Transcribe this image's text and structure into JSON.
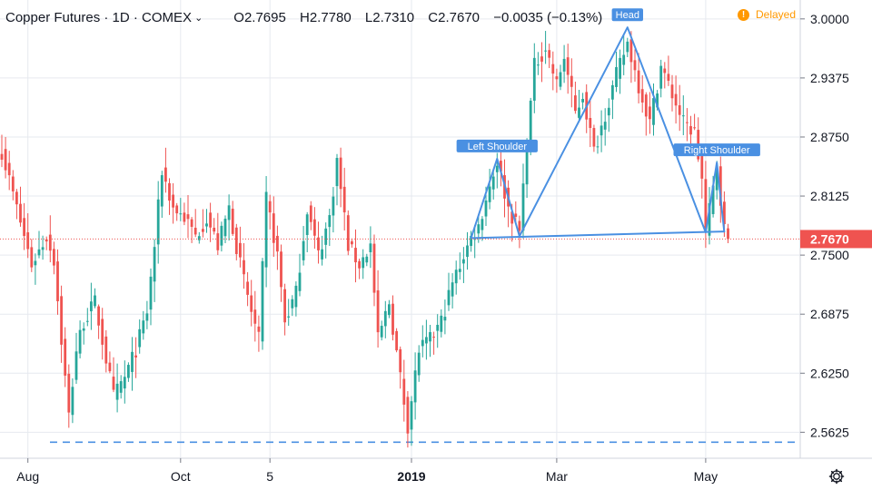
{
  "legend": {
    "symbol": "Copper Futures · 1D · COMEX",
    "open": "O2.7695",
    "high": "H2.7780",
    "low": "L2.7310",
    "close": "C2.7670",
    "change": "−0.0035 (−0.13%)"
  },
  "status": {
    "label": "Delayed",
    "icon": "!"
  },
  "colors": {
    "up": "#26a69a",
    "down": "#ef5350",
    "pattern": "#4a90e2",
    "last_price": "#ef5350",
    "grid": "#e6e9ef",
    "axis_text": "#131722"
  },
  "chart_data": {
    "type": "candlestick",
    "ylim": [
      2.535,
      3.02
    ],
    "y_ticks": [
      "2.5625",
      "2.6250",
      "2.6875",
      "2.7500",
      "2.8125",
      "2.8750",
      "2.9375",
      "3.0000"
    ],
    "x_ticks": [
      {
        "label": "Aug",
        "index": 7
      },
      {
        "label": "Oct",
        "index": 48
      },
      {
        "label": "5",
        "index": 72
      },
      {
        "label": "2019",
        "index": 110,
        "bold": true
      },
      {
        "label": "Mar",
        "index": 149
      },
      {
        "label": "May",
        "index": 189
      }
    ],
    "last_price": {
      "value": 2.767,
      "label": "2.7670"
    },
    "support_level": 2.552,
    "annotations": [
      {
        "label": "Left Shoulder",
        "index": 133,
        "price": 2.852
      },
      {
        "label": "Head",
        "index": 168,
        "price": 2.991
      },
      {
        "label": "Right Shoulder",
        "index": 192,
        "price": 2.848
      }
    ],
    "pattern_path": [
      {
        "index": 126,
        "price": 2.768
      },
      {
        "index": 133,
        "price": 2.852
      },
      {
        "index": 139,
        "price": 2.77
      },
      {
        "index": 168,
        "price": 2.991
      },
      {
        "index": 189,
        "price": 2.774
      },
      {
        "index": 192,
        "price": 2.848
      },
      {
        "index": 194,
        "price": 2.774
      }
    ],
    "neckline": [
      {
        "index": 126,
        "price": 2.768
      },
      {
        "index": 194,
        "price": 2.775
      }
    ],
    "close_anchors": [
      [
        0,
        2.86
      ],
      [
        4,
        2.8
      ],
      [
        8,
        2.74
      ],
      [
        12,
        2.77
      ],
      [
        14,
        2.745
      ],
      [
        16,
        2.66
      ],
      [
        18,
        2.58
      ],
      [
        20,
        2.65
      ],
      [
        22,
        2.68
      ],
      [
        25,
        2.7
      ],
      [
        28,
        2.64
      ],
      [
        30,
        2.6
      ],
      [
        33,
        2.62
      ],
      [
        36,
        2.65
      ],
      [
        39,
        2.69
      ],
      [
        41,
        2.76
      ],
      [
        43,
        2.84
      ],
      [
        46,
        2.8
      ],
      [
        49,
        2.79
      ],
      [
        52,
        2.77
      ],
      [
        55,
        2.79
      ],
      [
        58,
        2.76
      ],
      [
        61,
        2.8
      ],
      [
        64,
        2.74
      ],
      [
        67,
        2.69
      ],
      [
        69,
        2.66
      ],
      [
        71,
        2.81
      ],
      [
        74,
        2.75
      ],
      [
        76,
        2.68
      ],
      [
        79,
        2.71
      ],
      [
        82,
        2.8
      ],
      [
        85,
        2.75
      ],
      [
        88,
        2.79
      ],
      [
        90,
        2.85
      ],
      [
        93,
        2.76
      ],
      [
        96,
        2.74
      ],
      [
        99,
        2.76
      ],
      [
        101,
        2.66
      ],
      [
        104,
        2.7
      ],
      [
        107,
        2.62
      ],
      [
        109,
        2.57
      ],
      [
        112,
        2.65
      ],
      [
        115,
        2.66
      ],
      [
        118,
        2.68
      ],
      [
        121,
        2.72
      ],
      [
        124,
        2.75
      ],
      [
        126,
        2.768
      ],
      [
        128,
        2.78
      ],
      [
        130,
        2.81
      ],
      [
        133,
        2.85
      ],
      [
        136,
        2.8
      ],
      [
        139,
        2.775
      ],
      [
        141,
        2.87
      ],
      [
        143,
        2.95
      ],
      [
        146,
        2.97
      ],
      [
        149,
        2.93
      ],
      [
        151,
        2.96
      ],
      [
        154,
        2.9
      ],
      [
        156,
        2.92
      ],
      [
        159,
        2.86
      ],
      [
        162,
        2.9
      ],
      [
        165,
        2.94
      ],
      [
        168,
        2.975
      ],
      [
        171,
        2.93
      ],
      [
        174,
        2.89
      ],
      [
        177,
        2.95
      ],
      [
        180,
        2.92
      ],
      [
        183,
        2.89
      ],
      [
        186,
        2.88
      ],
      [
        188,
        2.83
      ],
      [
        189,
        2.775
      ],
      [
        191,
        2.82
      ],
      [
        192,
        2.845
      ],
      [
        194,
        2.777
      ],
      [
        195,
        2.767
      ]
    ]
  }
}
